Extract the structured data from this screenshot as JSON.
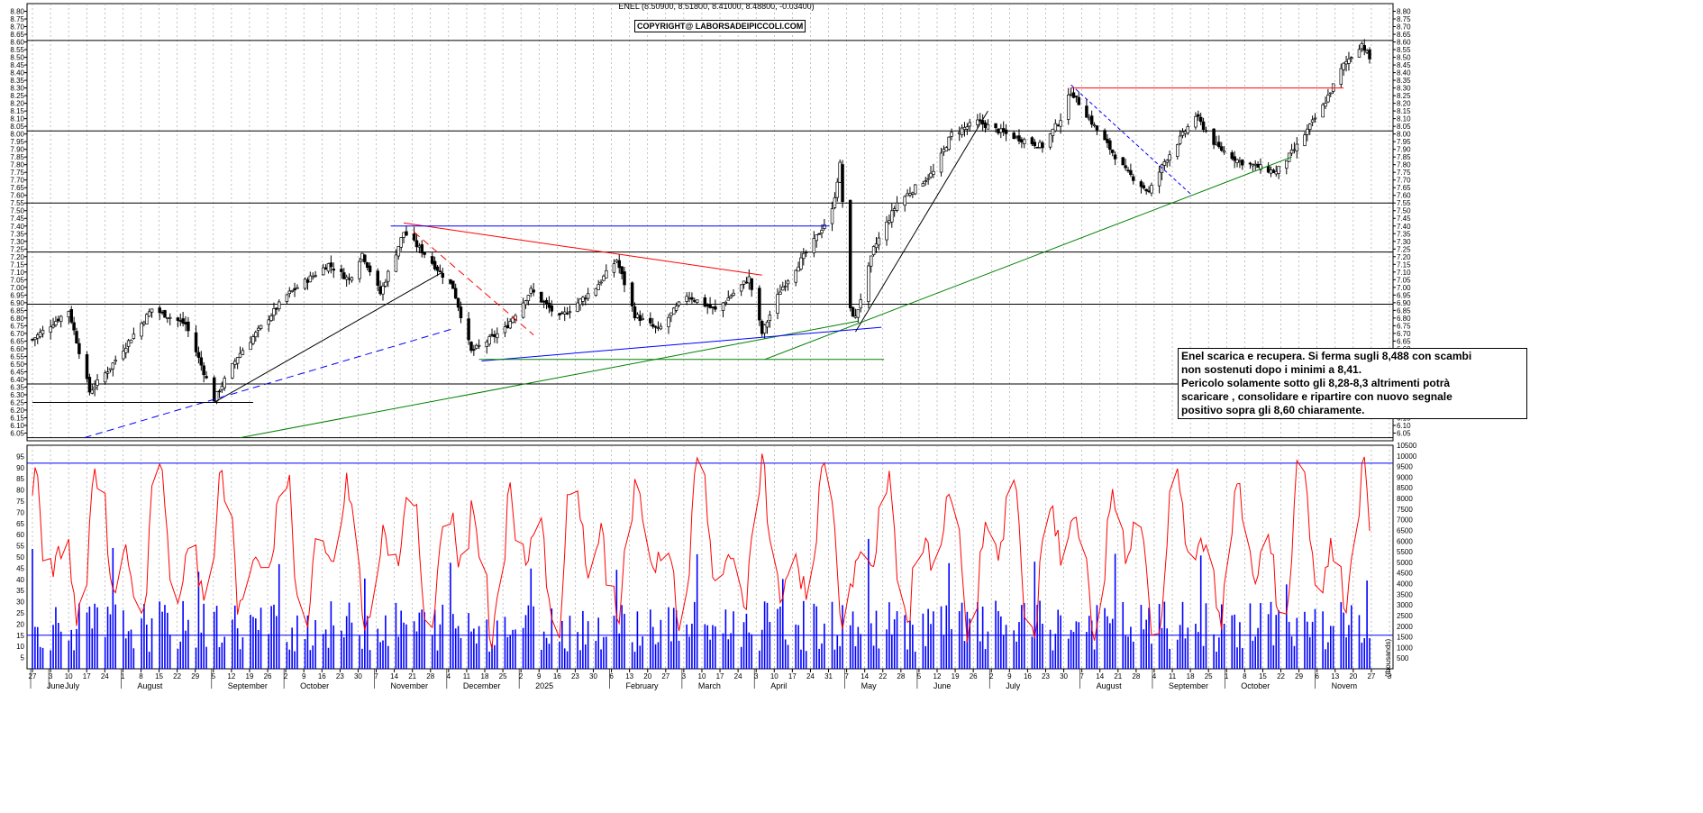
{
  "header": {
    "title": "ENEL (8.50900, 8.51800, 8.41000, 8.48800, -0.03400)",
    "copyright": "COPYRIGHT@ LABORSADEIPICCOLI.COM"
  },
  "annotation": {
    "lines": [
      "Enel scarica e recupera. Si ferma sugli 8,488 con scambi",
      "non sostenuti dopo i minimi a 8,41.",
      "Pericolo solamente sotto gli 8,28-8,3 altrimenti potrà",
      "scaricare , consolidare e ripartire con nuovo segnale",
      "positivo sopra gli 8,60 chiaramente."
    ]
  },
  "colors": {
    "up": "#000000",
    "down": "#000000",
    "rsi": "#ff0000",
    "volume": "#0000ff",
    "frame": "#000000",
    "grid": "#808080"
  },
  "chart_data": [
    {
      "type": "candlestick",
      "title": "ENEL (8.50900, 8.51800, 8.41000, 8.48800, -0.03400)",
      "ylim": [
        6.0,
        8.85
      ],
      "y_ticks": [
        "8.80",
        "8.75",
        "8.70",
        "8.65",
        "8.60",
        "8.55",
        "8.50",
        "8.45",
        "8.40",
        "8.35",
        "8.30",
        "8.25",
        "8.20",
        "8.15",
        "8.10",
        "8.05",
        "8.00",
        "7.95",
        "7.90",
        "7.85",
        "7.80",
        "7.75",
        "7.70",
        "7.65",
        "7.60",
        "7.55",
        "7.50",
        "7.45",
        "7.40",
        "7.35",
        "7.30",
        "7.25",
        "7.20",
        "7.15",
        "7.10",
        "7.05",
        "7.00",
        "6.95",
        "6.90",
        "6.85",
        "6.80",
        "6.75",
        "6.70",
        "6.65",
        "6.60",
        "6.55",
        "6.50",
        "6.45",
        "6.40",
        "6.35",
        "6.30",
        "6.25",
        "6.20",
        "6.15",
        "6.10",
        "6.05"
      ],
      "x_day_ticks": [
        "27",
        "3",
        "10",
        "17",
        "24",
        "1",
        "8",
        "15",
        "22",
        "29",
        "5",
        "12",
        "19",
        "26",
        "2",
        "9",
        "16",
        "23",
        "30",
        "7",
        "14",
        "21",
        "28",
        "4",
        "11",
        "18",
        "25",
        "2",
        "9",
        "16",
        "23",
        "30",
        "6",
        "13",
        "20",
        "27",
        "3",
        "10",
        "17",
        "24",
        "3",
        "10",
        "17",
        "24",
        "31",
        "7",
        "14",
        "22",
        "28",
        "5",
        "12",
        "19",
        "26",
        "2",
        "9",
        "16",
        "23",
        "30",
        "7",
        "14",
        "21",
        "28",
        "4",
        "11",
        "18",
        "25",
        "1",
        "8",
        "15",
        "22",
        "29",
        "6",
        "13",
        "20",
        "27",
        "3"
      ],
      "x_month_labels": [
        "June",
        "July",
        "August",
        "September",
        "October",
        "November",
        "December",
        "2025",
        "February",
        "March",
        "April",
        "May",
        "June",
        "July",
        "August",
        "September",
        "October",
        "Novem"
      ],
      "price_keyframes": [
        [
          "2024-05-27",
          6.66
        ],
        [
          "2024-06-10",
          6.85
        ],
        [
          "2024-06-18",
          6.32
        ],
        [
          "2024-06-26",
          6.48
        ],
        [
          "2024-07-12",
          6.86
        ],
        [
          "2024-07-25",
          6.76
        ],
        [
          "2024-08-05",
          6.27
        ],
        [
          "2024-08-14",
          6.55
        ],
        [
          "2024-09-02",
          6.95
        ],
        [
          "2024-09-18",
          7.15
        ],
        [
          "2024-09-26",
          7.05
        ],
        [
          "2024-10-01",
          7.22
        ],
        [
          "2024-10-08",
          6.96
        ],
        [
          "2024-10-17",
          7.36
        ],
        [
          "2024-10-25",
          7.22
        ],
        [
          "2024-11-05",
          7.0
        ],
        [
          "2024-11-12",
          6.58
        ],
        [
          "2024-11-25",
          6.73
        ],
        [
          "2024-12-05",
          6.98
        ],
        [
          "2024-12-16",
          6.8
        ],
        [
          "2024-12-30",
          7.0
        ],
        [
          "2025-01-07",
          7.18
        ],
        [
          "2025-01-14",
          6.82
        ],
        [
          "2025-01-23",
          6.72
        ],
        [
          "2025-02-03",
          6.95
        ],
        [
          "2025-02-14",
          6.85
        ],
        [
          "2025-02-27",
          7.06
        ],
        [
          "2025-03-04",
          6.7
        ],
        [
          "2025-03-11",
          6.98
        ],
        [
          "2025-03-24",
          7.3
        ],
        [
          "2025-03-31",
          7.5
        ],
        [
          "2025-04-03",
          7.8
        ],
        [
          "2025-04-07",
          6.85
        ],
        [
          "2025-04-09",
          6.8
        ],
        [
          "2025-04-16",
          7.25
        ],
        [
          "2025-04-25",
          7.55
        ],
        [
          "2025-05-09",
          7.75
        ],
        [
          "2025-05-16",
          8.0
        ],
        [
          "2025-05-26",
          8.08
        ],
        [
          "2025-06-06",
          8.0
        ],
        [
          "2025-06-20",
          7.92
        ],
        [
          "2025-06-27",
          8.1
        ],
        [
          "2025-07-01",
          8.28
        ],
        [
          "2025-07-10",
          8.05
        ],
        [
          "2025-07-22",
          7.76
        ],
        [
          "2025-07-31",
          7.62
        ],
        [
          "2025-08-06",
          7.82
        ],
        [
          "2025-08-18",
          8.12
        ],
        [
          "2025-08-26",
          7.92
        ],
        [
          "2025-09-04",
          7.82
        ],
        [
          "2025-09-12",
          7.78
        ],
        [
          "2025-09-18",
          7.75
        ],
        [
          "2025-09-26",
          7.92
        ],
        [
          "2025-10-06",
          8.18
        ],
        [
          "2025-10-14",
          8.45
        ],
        [
          "2025-10-21",
          8.59
        ],
        [
          "2025-10-24",
          8.49
        ]
      ]
    },
    {
      "type": "line+bar",
      "title": "",
      "oscillator_ylim": [
        0,
        100
      ],
      "oscillator_ticks": [
        "95",
        "90",
        "85",
        "80",
        "75",
        "70",
        "65",
        "60",
        "55",
        "50",
        "45",
        "40",
        "35",
        "30",
        "25",
        "20",
        "15",
        "10",
        "5"
      ],
      "oscillator_levels": [
        92,
        15
      ],
      "volume_ylim": [
        0,
        10500
      ],
      "volume_ticks": [
        "10500",
        "10000",
        "9500",
        "9000",
        "8500",
        "8000",
        "7500",
        "7000",
        "6500",
        "6000",
        "5500",
        "5000",
        "4500",
        "4000",
        "3500",
        "3000",
        "2500",
        "2000",
        "1500",
        "1000",
        "500"
      ],
      "volume_unit": "(thousands)"
    }
  ]
}
